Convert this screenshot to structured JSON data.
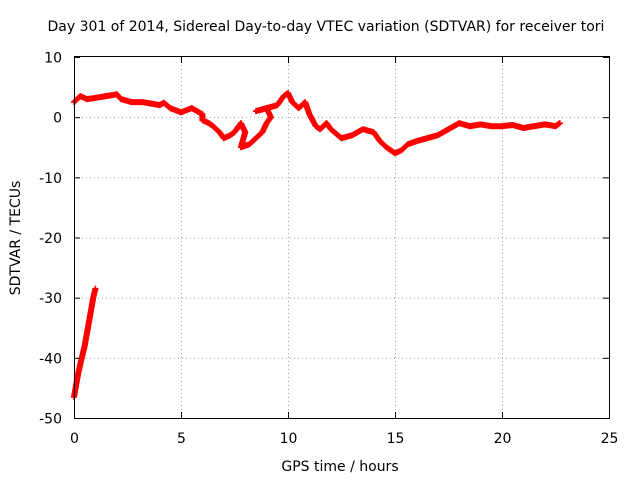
{
  "chart_data": {
    "type": "scatter",
    "title": "Day 301 of 2014, Sidereal Day-to-day VTEC variation (SDTVAR) for receiver tori",
    "xlabel": "GPS time / hours",
    "ylabel": "SDTVAR / TECUs",
    "xlim": [
      0,
      25
    ],
    "ylim": [
      -50,
      10
    ],
    "xticks": [
      0,
      5,
      10,
      15,
      20,
      25
    ],
    "yticks": [
      -50,
      -40,
      -30,
      -20,
      -10,
      0,
      10
    ],
    "grid": true,
    "series": [
      {
        "name": "SDTVAR",
        "color": "#ff0000",
        "marker": "plus",
        "points": [
          [
            0.0,
            -46.5
          ],
          [
            0.1,
            -44.5
          ],
          [
            0.2,
            -42.5
          ],
          [
            0.3,
            -41.0
          ],
          [
            0.4,
            -39.5
          ],
          [
            0.5,
            -38.0
          ],
          [
            0.6,
            -36.0
          ],
          [
            0.7,
            -34.0
          ],
          [
            0.8,
            -32.0
          ],
          [
            0.9,
            -30.0
          ],
          [
            1.0,
            -28.5
          ],
          [
            0.0,
            2.5
          ],
          [
            0.3,
            3.5
          ],
          [
            0.6,
            3.0
          ],
          [
            1.0,
            3.2
          ],
          [
            1.5,
            3.5
          ],
          [
            2.0,
            3.8
          ],
          [
            2.2,
            3.0
          ],
          [
            2.7,
            2.5
          ],
          [
            3.2,
            2.5
          ],
          [
            3.7,
            2.2
          ],
          [
            4.0,
            2.0
          ],
          [
            4.2,
            2.4
          ],
          [
            4.5,
            1.5
          ],
          [
            5.0,
            0.8
          ],
          [
            5.5,
            1.5
          ],
          [
            6.0,
            0.5
          ],
          [
            6.0,
            -0.5
          ],
          [
            6.3,
            -1.0
          ],
          [
            6.5,
            -1.5
          ],
          [
            6.8,
            -2.5
          ],
          [
            7.0,
            -3.5
          ],
          [
            7.3,
            -3.0
          ],
          [
            7.5,
            -2.5
          ],
          [
            7.8,
            -1.0
          ],
          [
            8.0,
            -2.5
          ],
          [
            7.8,
            -5.0
          ],
          [
            8.2,
            -4.5
          ],
          [
            8.5,
            -3.5
          ],
          [
            8.8,
            -2.5
          ],
          [
            9.0,
            -1.0
          ],
          [
            9.2,
            0.0
          ],
          [
            9.0,
            1.5
          ],
          [
            8.5,
            1.0
          ],
          [
            9.5,
            2.0
          ],
          [
            9.8,
            3.5
          ],
          [
            10.0,
            4.0
          ],
          [
            10.2,
            2.5
          ],
          [
            10.5,
            1.5
          ],
          [
            10.8,
            2.5
          ],
          [
            11.0,
            0.5
          ],
          [
            11.3,
            -1.5
          ],
          [
            11.5,
            -2.0
          ],
          [
            11.8,
            -1.0
          ],
          [
            12.0,
            -2.0
          ],
          [
            12.5,
            -3.5
          ],
          [
            13.0,
            -3.0
          ],
          [
            13.5,
            -2.0
          ],
          [
            14.0,
            -2.5
          ],
          [
            14.3,
            -4.0
          ],
          [
            14.6,
            -5.0
          ],
          [
            15.0,
            -6.0
          ],
          [
            15.3,
            -5.5
          ],
          [
            15.6,
            -4.5
          ],
          [
            16.0,
            -4.0
          ],
          [
            16.5,
            -3.5
          ],
          [
            17.0,
            -3.0
          ],
          [
            17.5,
            -2.0
          ],
          [
            18.0,
            -1.0
          ],
          [
            18.5,
            -1.5
          ],
          [
            19.0,
            -1.2
          ],
          [
            19.5,
            -1.5
          ],
          [
            20.0,
            -1.5
          ],
          [
            20.5,
            -1.3
          ],
          [
            21.0,
            -1.8
          ],
          [
            21.5,
            -1.5
          ],
          [
            22.0,
            -1.2
          ],
          [
            22.5,
            -1.5
          ],
          [
            22.7,
            -1.0
          ]
        ]
      }
    ]
  }
}
